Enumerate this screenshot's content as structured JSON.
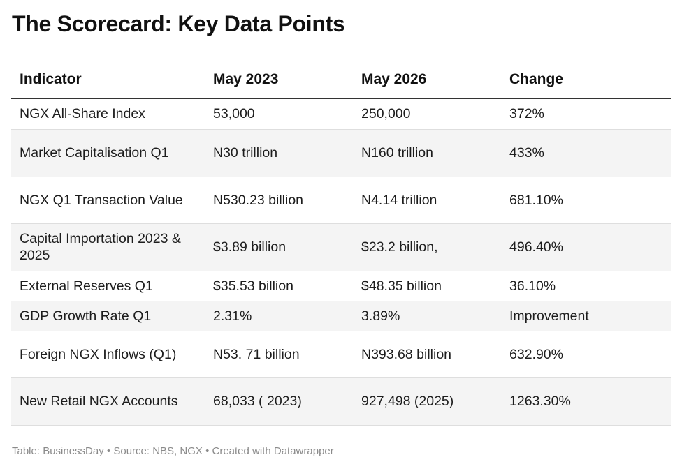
{
  "title": "The Scorecard: Key Data Points",
  "chart_data": {
    "type": "table",
    "columns": [
      "Indicator",
      "May 2023",
      "May 2026",
      "Change"
    ],
    "rows": [
      [
        "NGX All-Share Index",
        "53,000",
        "250,000",
        "372%"
      ],
      [
        "Market Capitalisation Q1",
        "N30 trillion",
        "N160 trillion",
        "433%"
      ],
      [
        "NGX Q1 Transaction Value",
        "N530.23 billion",
        "N4.14 trillion",
        "681.10%"
      ],
      [
        "Capital Importation 2023 & 2025",
        "$3.89 billion",
        "$23.2 billion,",
        "496.40%"
      ],
      [
        "External Reserves Q1",
        "$35.53 billion",
        "$48.35 billion",
        "36.10%"
      ],
      [
        "GDP Growth Rate Q1",
        "2.31%",
        "3.89%",
        "Improvement"
      ],
      [
        "Foreign NGX Inflows (Q1)",
        "N53. 71 billion",
        "N393.68 billion",
        "632.90%"
      ],
      [
        "New Retail NGX Accounts",
        "68,033 ( 2023)",
        "927,498 (2025)",
        "1263.30%"
      ]
    ]
  },
  "footer": {
    "table_credit": "Table: BusinessDay",
    "source": "Source: NBS, NGX",
    "created": "Created with Datawrapper",
    "separator": "•"
  }
}
